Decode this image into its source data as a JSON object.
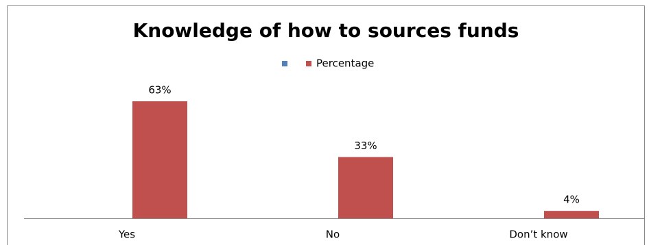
{
  "chart_data": {
    "type": "bar",
    "title": "Knowledge of how to sources funds",
    "categories": [
      "Yes",
      "No",
      "Don’t know"
    ],
    "series": [
      {
        "color": "#4f81bd",
        "values": [
          null,
          null,
          null
        ]
      },
      {
        "name": "Percentage",
        "color": "#c0504d",
        "values": [
          63,
          33,
          4
        ],
        "value_labels": [
          "63%",
          "33%",
          "4%"
        ]
      }
    ],
    "legend": "top"
  }
}
